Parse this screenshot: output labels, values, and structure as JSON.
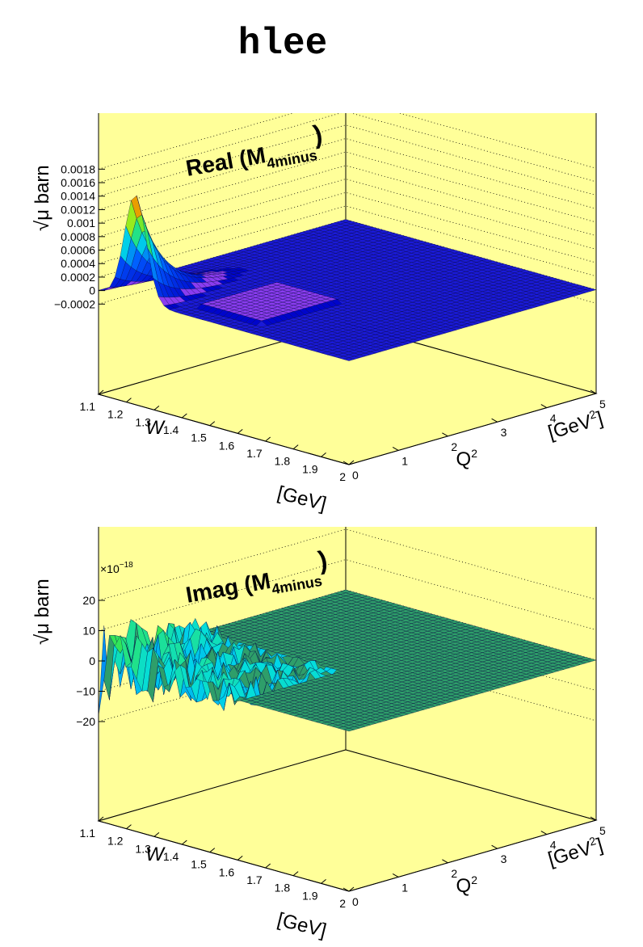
{
  "page": {
    "title": "hlee"
  },
  "chart_data": [
    {
      "type": "surface",
      "title": "Real (M",
      "title_sub": "4minus",
      "title_close": ")",
      "zlabel": "√μ barn",
      "x_var": "W",
      "x_unit": "[GeV]",
      "y_var": "Q",
      "y_sup": "2",
      "y_unit": "[GeV",
      "y_unit_sup": "2",
      "y_unit_close": "]",
      "xlim": [
        1.1,
        2.0
      ],
      "ylim": [
        0,
        5
      ],
      "zlim": [
        -0.00028,
        0.0019
      ],
      "x_ticks": [
        "1.1",
        "1.2",
        "1.3",
        "1.4",
        "1.5",
        "1.6",
        "1.7",
        "1.8",
        "1.9",
        "2"
      ],
      "y_ticks": [
        "0",
        "1",
        "2",
        "3",
        "4",
        "5"
      ],
      "z_ticks": [
        -0.0002,
        0,
        0.0002,
        0.0004,
        0.0006,
        0.0008,
        0.001,
        0.0012,
        0.0014,
        0.0016,
        0.0018
      ],
      "z_tick_labels": [
        "−0.0002",
        "0",
        "0.0002",
        "0.0004",
        "0.0006",
        "0.0008",
        "0.001",
        "0.0012",
        "0.0014",
        "0.0016",
        "0.0018"
      ],
      "exponent_label": "",
      "peak": {
        "w": 1.232,
        "q2": 0.0,
        "value": 0.00158
      },
      "colors": {
        "background": "#ffff99",
        "surface_low": "#1010d0",
        "surface_high": "#e00000"
      }
    },
    {
      "type": "surface",
      "title": "Imag (M",
      "title_sub": "4minus",
      "title_close": ")",
      "zlabel": "√μ barn",
      "x_var": "W",
      "x_unit": "[GeV]",
      "y_var": "Q",
      "y_sup": "2",
      "y_unit": "[GeV",
      "y_unit_sup": "2",
      "y_unit_close": "]",
      "xlim": [
        1.1,
        2.0
      ],
      "ylim": [
        0,
        5
      ],
      "zlim": [
        -28,
        28
      ],
      "x_ticks": [
        "1.1",
        "1.2",
        "1.3",
        "1.4",
        "1.5",
        "1.6",
        "1.7",
        "1.8",
        "1.9",
        "2"
      ],
      "y_ticks": [
        "0",
        "1",
        "2",
        "3",
        "4",
        "5"
      ],
      "z_ticks": [
        -20,
        -10,
        0,
        10,
        20
      ],
      "z_tick_labels": [
        "−20",
        "−10",
        "0",
        "10",
        "20"
      ],
      "exponent_label": "×10",
      "exponent_sup": "−18",
      "noise_region": {
        "w_range": [
          1.1,
          1.6
        ],
        "q2_range": [
          0,
          2
        ],
        "amplitude": 18
      },
      "colors": {
        "background": "#ffff99",
        "surface_low": "#1010d0",
        "surface_high": "#e00000"
      }
    }
  ]
}
